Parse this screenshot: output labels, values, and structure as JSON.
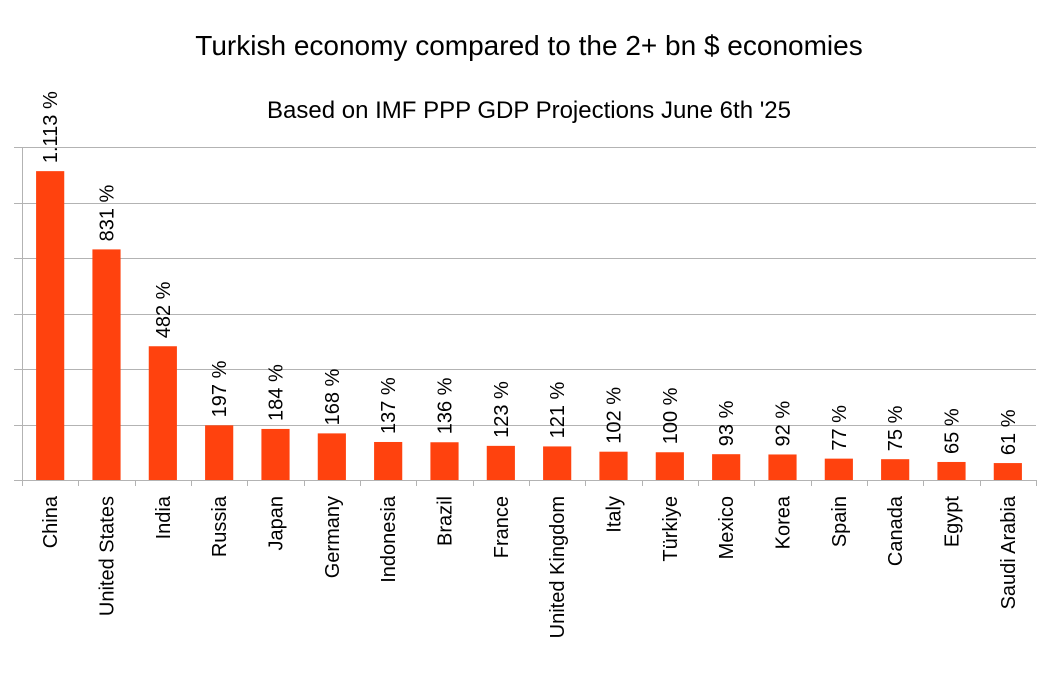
{
  "chart_data": {
    "type": "bar",
    "title": "Turkish economy compared to the 2+ bn $ economies",
    "subtitle": "Based on IMF PPP GDP Projections June 6th '25",
    "xlabel": "",
    "ylabel": "",
    "categories": [
      "China",
      "United States",
      "India",
      "Russia",
      "Japan",
      "Germany",
      "Indonesia",
      "Brazil",
      "France",
      "United Kingdom",
      "Italy",
      "Türkiye",
      "Mexico",
      "Korea",
      "Spain",
      "Canada",
      "Egypt",
      "Saudi Arabia"
    ],
    "values": [
      1113,
      831,
      482,
      197,
      184,
      168,
      137,
      136,
      123,
      121,
      102,
      100,
      93,
      92,
      77,
      75,
      65,
      61
    ],
    "data_labels": [
      "1.113 %",
      "831 %",
      "482 %",
      "197 %",
      "184 %",
      "168 %",
      "137 %",
      "136 %",
      "123 %",
      "121 %",
      "102 %",
      "100 %",
      "93 %",
      "92 %",
      "77 %",
      "75 %",
      "65 %",
      "61 %"
    ],
    "ylim": [
      0,
      1200
    ],
    "y_gridlines": [
      0,
      200,
      400,
      600,
      800,
      1000,
      1200
    ],
    "y_tick_labels_visible": false,
    "grid": true,
    "legend": "none",
    "colors": {
      "bar": "#ff420e",
      "grid": "#b3b3b3"
    }
  }
}
